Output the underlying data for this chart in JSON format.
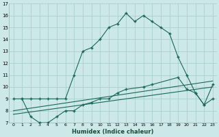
{
  "xlabel": "Humidex (Indice chaleur)",
  "bg_color": "#cce8e8",
  "grid_color": "#aacfcf",
  "line_color": "#1a6655",
  "xlim": [
    -0.5,
    23.5
  ],
  "ylim": [
    7,
    17
  ],
  "xticks": [
    0,
    1,
    2,
    3,
    4,
    5,
    6,
    7,
    8,
    9,
    10,
    11,
    12,
    13,
    14,
    15,
    16,
    17,
    18,
    19,
    20,
    21,
    22,
    23
  ],
  "yticks": [
    7,
    8,
    9,
    10,
    11,
    12,
    13,
    14,
    15,
    16,
    17
  ],
  "series1_x": [
    0,
    1,
    2,
    3,
    4,
    5,
    6,
    7,
    8,
    9,
    10,
    11,
    12,
    13,
    14,
    15,
    16,
    17,
    18,
    19,
    20,
    21,
    22,
    23
  ],
  "series1_y": [
    9,
    9,
    9,
    9,
    9,
    9,
    9,
    11,
    13,
    13.3,
    14,
    15,
    15.3,
    16.2,
    15.5,
    16,
    15.5,
    15,
    14.5,
    12.5,
    11,
    9.5,
    8.5,
    9
  ],
  "series2_x": [
    1,
    2,
    3,
    4,
    5,
    6,
    7,
    8,
    9,
    10,
    11,
    12,
    13,
    15,
    16,
    19,
    20,
    21,
    22,
    23
  ],
  "series2_y": [
    9,
    7.5,
    7,
    7,
    7.5,
    8,
    8,
    8.5,
    8.7,
    9,
    9,
    9.5,
    9.8,
    10,
    10.2,
    10.8,
    9.8,
    9.5,
    8.5,
    10.2
  ],
  "series3_x": [
    0,
    23
  ],
  "series3_y": [
    8.0,
    10.5
  ],
  "series4_x": [
    0,
    23
  ],
  "series4_y": [
    7.7,
    10.0
  ]
}
